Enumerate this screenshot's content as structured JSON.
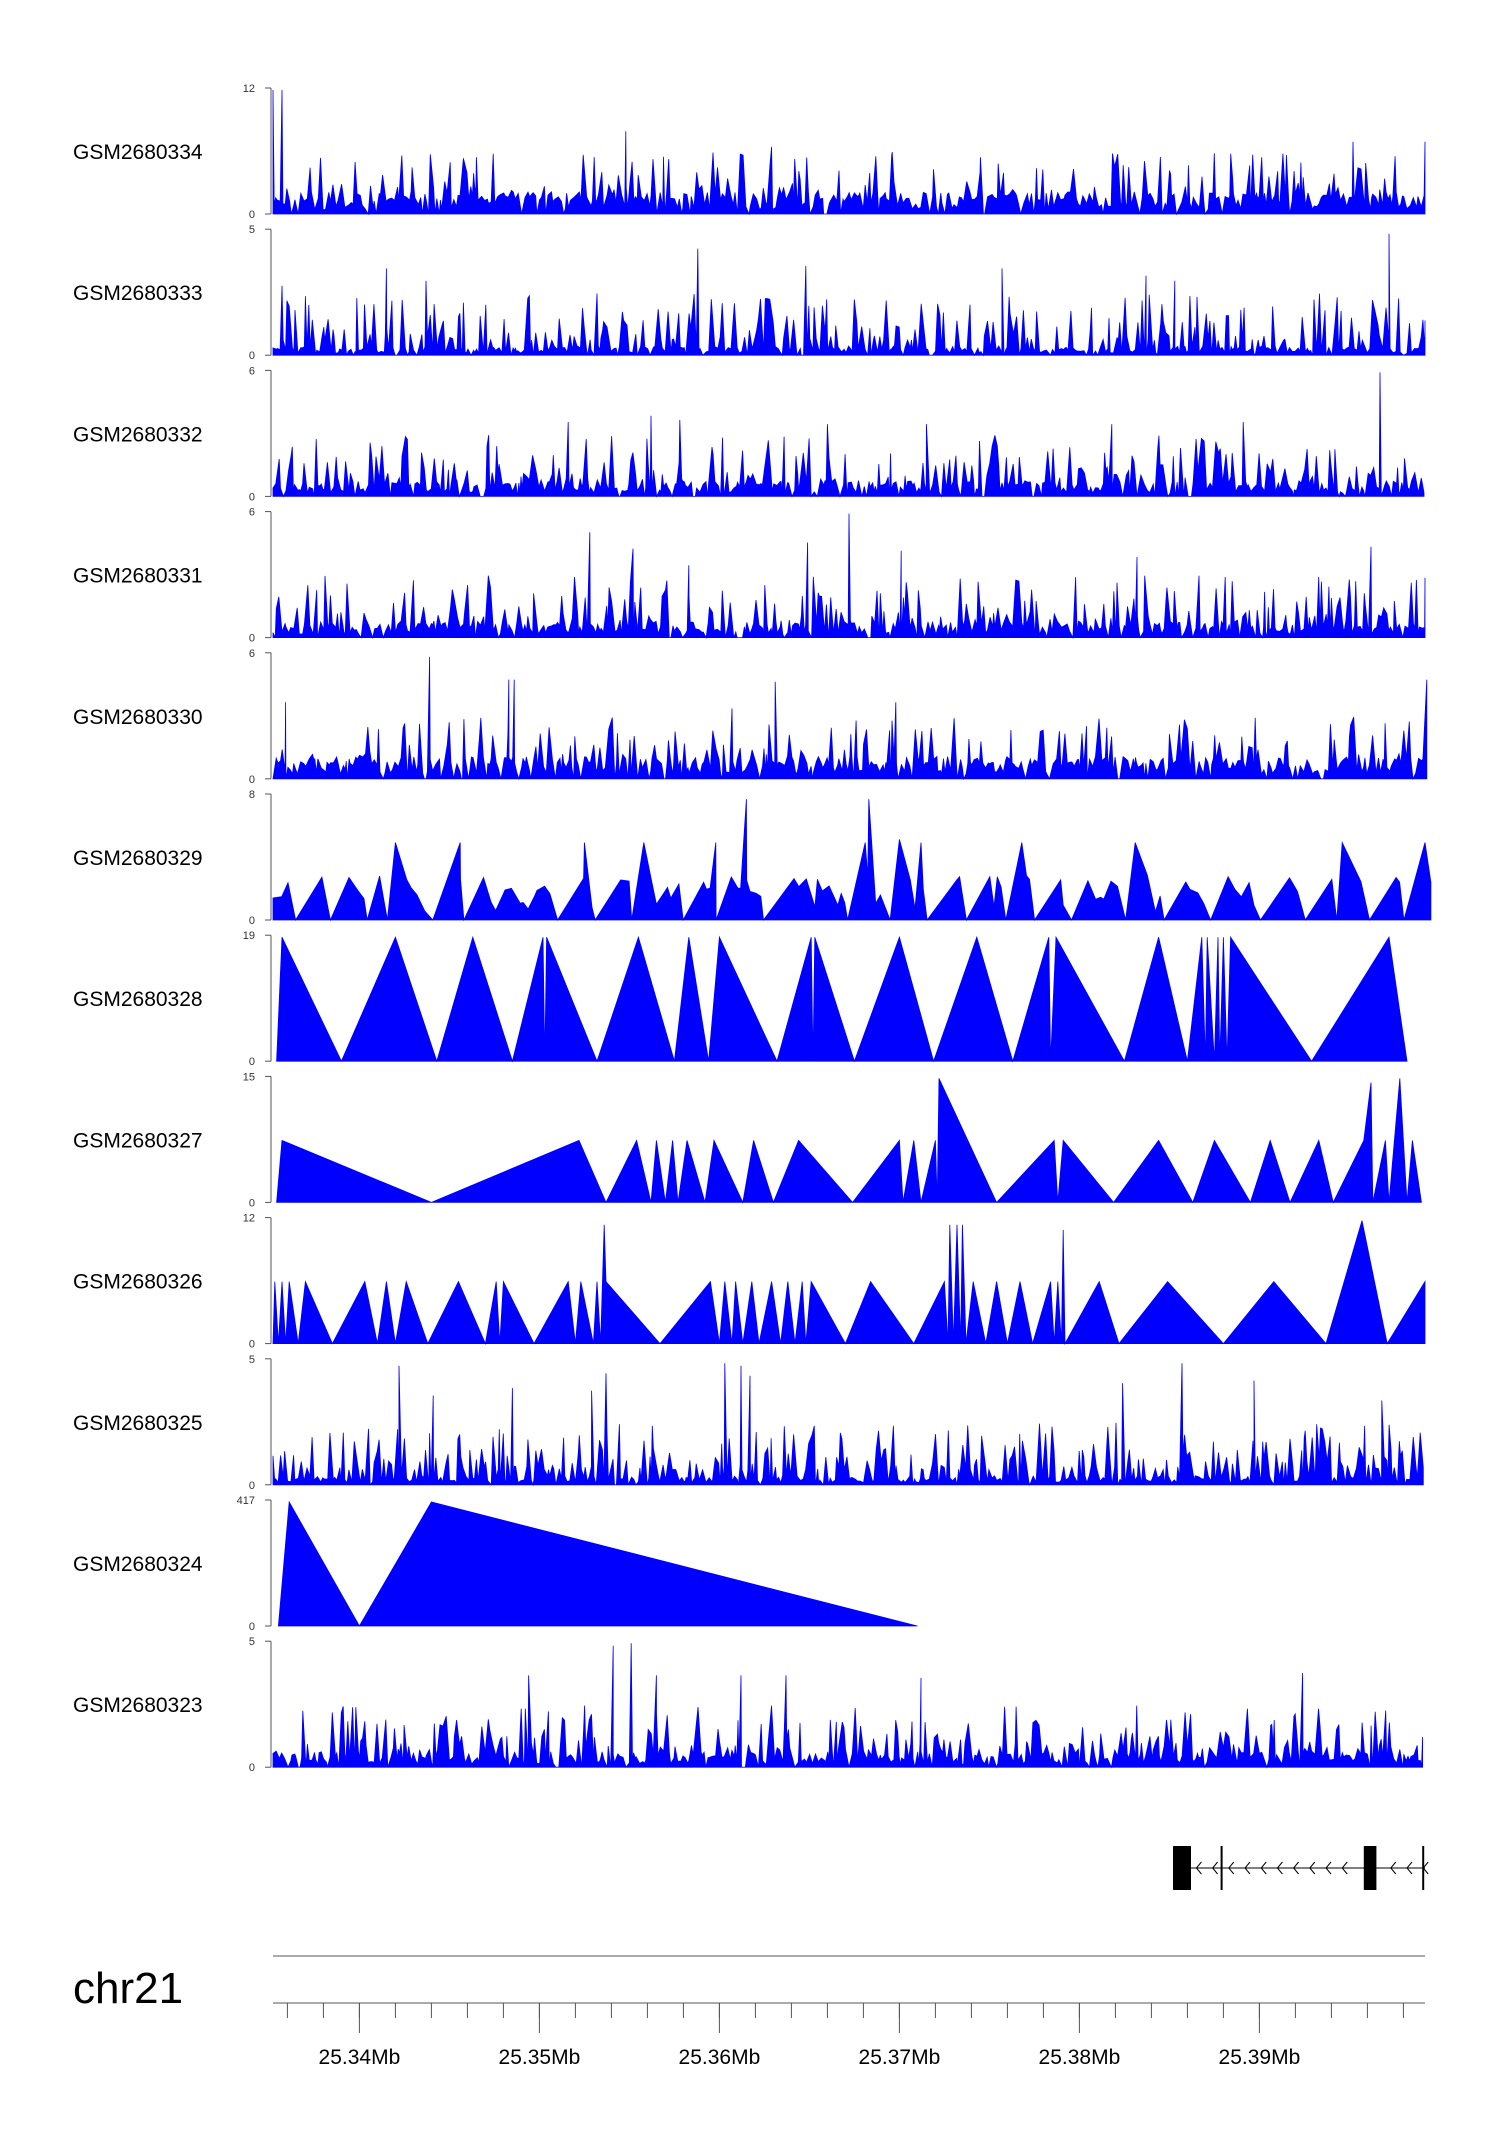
{
  "chart_data": {
    "type": "area",
    "chromosome": "chr21",
    "x_unit": "Mb",
    "xlim": [
      25.3352,
      25.3992
    ],
    "x_ticks": [
      25.34,
      25.35,
      25.36,
      25.37,
      25.38,
      25.39
    ],
    "x_tick_labels": [
      "25.34Mb",
      "25.35Mb",
      "25.36Mb",
      "25.37Mb",
      "25.38Mb",
      "25.39Mb"
    ],
    "minor_tick_step": 0.002,
    "series_color": "#0000ff",
    "tracks": [
      {
        "name": "GSM2680334",
        "ymax": 12,
        "ymax_label": "12",
        "ymin_label": "0",
        "pattern": "dense",
        "baseline": 0.6,
        "peak_rate": 0.32,
        "seed": 334,
        "peaks": [
          [
            25.3352,
            12
          ],
          [
            25.3357,
            12
          ],
          [
            25.3465,
            5.5
          ],
          [
            25.3548,
            8
          ],
          [
            25.3629,
            6.5
          ],
          [
            25.3696,
            6
          ],
          [
            25.3745,
            5.5
          ],
          [
            25.3952,
            7
          ],
          [
            25.3992,
            7
          ]
        ]
      },
      {
        "name": "GSM2680333",
        "ymax": 5,
        "ymax_label": "5",
        "ymin_label": "0",
        "pattern": "dense",
        "baseline": 0.25,
        "peak_rate": 0.38,
        "seed": 333,
        "peaks": [
          [
            25.3357,
            2.8
          ],
          [
            25.3415,
            3.5
          ],
          [
            25.3437,
            3
          ],
          [
            25.3588,
            4.3
          ],
          [
            25.3648,
            3.6
          ],
          [
            25.3757,
            3.5
          ],
          [
            25.3837,
            3.2
          ],
          [
            25.3853,
            3
          ],
          [
            25.3972,
            4.9
          ],
          [
            25.3992,
            1.4
          ]
        ]
      },
      {
        "name": "GSM2680332",
        "ymax": 6,
        "ymax_label": "6",
        "ymin_label": "0",
        "pattern": "dense",
        "baseline": 0.4,
        "peak_rate": 0.35,
        "seed": 332,
        "peaks": [
          [
            25.3516,
            3.6
          ],
          [
            25.3562,
            3.9
          ],
          [
            25.3578,
            3.7
          ],
          [
            25.366,
            3.5
          ],
          [
            25.3715,
            3.5
          ],
          [
            25.3818,
            3.5
          ],
          [
            25.3891,
            3.6
          ],
          [
            25.3967,
            6.0
          ]
        ]
      },
      {
        "name": "GSM2680331",
        "ymax": 6,
        "ymax_label": "6",
        "ymin_label": "0",
        "pattern": "dense",
        "baseline": 0.4,
        "peak_rate": 0.38,
        "seed": 331,
        "peaks": [
          [
            25.3528,
            5.1
          ],
          [
            25.3552,
            4.3
          ],
          [
            25.3583,
            3.5
          ],
          [
            25.3649,
            4.6
          ],
          [
            25.3672,
            6.0
          ],
          [
            25.3701,
            4.2
          ],
          [
            25.3832,
            3.9
          ],
          [
            25.3962,
            4.4
          ],
          [
            25.3992,
            2.9
          ]
        ]
      },
      {
        "name": "GSM2680330",
        "ymax": 6,
        "ymax_label": "6",
        "ymin_label": "0",
        "pattern": "dense",
        "baseline": 0.6,
        "peak_rate": 0.3,
        "seed": 330,
        "peaks": [
          [
            25.3359,
            3.7
          ],
          [
            25.3439,
            5.9
          ],
          [
            25.3483,
            4.8
          ],
          [
            25.3486,
            4.8
          ],
          [
            25.3607,
            3.4
          ],
          [
            25.3631,
            4.7
          ],
          [
            25.3698,
            3.7
          ],
          [
            25.3993,
            4.8
          ]
        ]
      },
      {
        "name": "GSM2680329",
        "ymax": 8,
        "ymax_label": "8",
        "ymin_label": "0",
        "pattern": "sparse",
        "baseline": 0.2,
        "peak_rate": 0.55,
        "seed": 329,
        "peaks": [
          [
            25.342,
            5.0
          ],
          [
            25.3456,
            5.0
          ],
          [
            25.3525,
            5.0
          ],
          [
            25.3558,
            5.0
          ],
          [
            25.3598,
            5.0
          ],
          [
            25.3615,
            7.8
          ],
          [
            25.3681,
            5.0
          ],
          [
            25.3683,
            7.8
          ],
          [
            25.37,
            5.2
          ],
          [
            25.3712,
            5.0
          ],
          [
            25.3768,
            5.0
          ],
          [
            25.3831,
            5.0
          ],
          [
            25.3946,
            5.0
          ],
          [
            25.3992,
            5.0
          ]
        ]
      },
      {
        "name": "GSM2680328",
        "ymax": 19,
        "ymax_label": "19",
        "ymin_label": "0",
        "pattern": "points",
        "points": [
          [
            25.3354,
            0
          ],
          [
            25.3357,
            19
          ],
          [
            25.339,
            0
          ],
          [
            25.342,
            19
          ],
          [
            25.3443,
            0
          ],
          [
            25.3463,
            19
          ],
          [
            25.3485,
            0
          ],
          [
            25.3502,
            19
          ],
          [
            25.3503,
            0
          ],
          [
            25.3504,
            19
          ],
          [
            25.3532,
            0
          ],
          [
            25.3555,
            19
          ],
          [
            25.3575,
            0
          ],
          [
            25.3583,
            19
          ],
          [
            25.3594,
            0
          ],
          [
            25.36,
            19
          ],
          [
            25.3632,
            0
          ],
          [
            25.3651,
            19
          ],
          [
            25.3652,
            0
          ],
          [
            25.3653,
            19
          ],
          [
            25.3675,
            0
          ],
          [
            25.37,
            19
          ],
          [
            25.3719,
            0
          ],
          [
            25.3743,
            19
          ],
          [
            25.3763,
            0
          ],
          [
            25.3783,
            19
          ],
          [
            25.3784,
            0
          ],
          [
            25.3787,
            19
          ],
          [
            25.3825,
            0
          ],
          [
            25.3844,
            19
          ],
          [
            25.386,
            0
          ],
          [
            25.3868,
            19
          ],
          [
            25.387,
            0
          ],
          [
            25.3871,
            19
          ],
          [
            25.3875,
            0
          ],
          [
            25.3877,
            19
          ],
          [
            25.3878,
            0
          ],
          [
            25.388,
            19
          ],
          [
            25.3882,
            0
          ],
          [
            25.3884,
            19
          ],
          [
            25.3929,
            0
          ],
          [
            25.3972,
            19
          ],
          [
            25.3982,
            0
          ]
        ]
      },
      {
        "name": "GSM2680327",
        "ymax": 15,
        "ymax_label": "15",
        "ymin_label": "0",
        "pattern": "points",
        "points": [
          [
            25.3354,
            0
          ],
          [
            25.3357,
            7.5
          ],
          [
            25.344,
            0
          ],
          [
            25.3522,
            7.5
          ],
          [
            25.3537,
            0
          ],
          [
            25.3554,
            7.5
          ],
          [
            25.3562,
            0
          ],
          [
            25.3565,
            7.5
          ],
          [
            25.357,
            0
          ],
          [
            25.3574,
            7.5
          ],
          [
            25.3577,
            0
          ],
          [
            25.3582,
            7.5
          ],
          [
            25.3592,
            0
          ],
          [
            25.3597,
            7.5
          ],
          [
            25.3613,
            0
          ],
          [
            25.3619,
            7.5
          ],
          [
            25.363,
            0
          ],
          [
            25.3644,
            7.5
          ],
          [
            25.3674,
            0
          ],
          [
            25.37,
            7.5
          ],
          [
            25.3702,
            0
          ],
          [
            25.3708,
            7.5
          ],
          [
            25.3712,
            0
          ],
          [
            25.372,
            7.5
          ],
          [
            25.3721,
            0
          ],
          [
            25.3722,
            15
          ],
          [
            25.3754,
            0
          ],
          [
            25.3786,
            7.5
          ],
          [
            25.3788,
            0
          ],
          [
            25.3791,
            7.5
          ],
          [
            25.3819,
            0
          ],
          [
            25.3844,
            7.5
          ],
          [
            25.3863,
            0
          ],
          [
            25.3875,
            7.5
          ],
          [
            25.3895,
            0
          ],
          [
            25.3906,
            7.5
          ],
          [
            25.3917,
            0
          ],
          [
            25.3933,
            7.5
          ],
          [
            25.3941,
            0
          ],
          [
            25.3958,
            7.5
          ],
          [
            25.3962,
            14.5
          ],
          [
            25.3963,
            0
          ],
          [
            25.397,
            7.5
          ],
          [
            25.3972,
            0
          ],
          [
            25.3978,
            15
          ],
          [
            25.3982,
            0
          ],
          [
            25.3985,
            7.5
          ],
          [
            25.399,
            0
          ]
        ]
      },
      {
        "name": "GSM2680326",
        "ymax": 12,
        "ymax_label": "12",
        "ymin_label": "0",
        "pattern": "points",
        "points": [
          [
            25.3352,
            0
          ],
          [
            25.3353,
            6
          ],
          [
            25.3355,
            0
          ],
          [
            25.3357,
            6
          ],
          [
            25.3359,
            0
          ],
          [
            25.3361,
            6
          ],
          [
            25.3366,
            0
          ],
          [
            25.337,
            6
          ],
          [
            25.3385,
            0
          ],
          [
            25.3403,
            6
          ],
          [
            25.341,
            0
          ],
          [
            25.3415,
            6
          ],
          [
            25.342,
            0
          ],
          [
            25.3426,
            6
          ],
          [
            25.3438,
            0
          ],
          [
            25.3455,
            6
          ],
          [
            25.347,
            0
          ],
          [
            25.3476,
            6
          ],
          [
            25.3478,
            0
          ],
          [
            25.348,
            6
          ],
          [
            25.3497,
            0
          ],
          [
            25.3516,
            6
          ],
          [
            25.352,
            0
          ],
          [
            25.3523,
            6
          ],
          [
            25.353,
            0
          ],
          [
            25.3532,
            6
          ],
          [
            25.3534,
            0
          ],
          [
            25.3536,
            11.5
          ],
          [
            25.3537,
            6
          ],
          [
            25.3567,
            0
          ],
          [
            25.3595,
            6
          ],
          [
            25.36,
            0
          ],
          [
            25.3603,
            6
          ],
          [
            25.3607,
            0
          ],
          [
            25.3609,
            6
          ],
          [
            25.3613,
            0
          ],
          [
            25.3618,
            6
          ],
          [
            25.3622,
            0
          ],
          [
            25.3629,
            6
          ],
          [
            25.3634,
            0
          ],
          [
            25.3638,
            6
          ],
          [
            25.3642,
            0
          ],
          [
            25.3646,
            6
          ],
          [
            25.3648,
            0
          ],
          [
            25.3651,
            6
          ],
          [
            25.367,
            0
          ],
          [
            25.3684,
            6
          ],
          [
            25.3708,
            0
          ],
          [
            25.3725,
            6
          ],
          [
            25.3727,
            0
          ],
          [
            25.3728,
            11.5
          ],
          [
            25.373,
            0
          ],
          [
            25.3732,
            11.5
          ],
          [
            25.3734,
            0
          ],
          [
            25.3735,
            11.5
          ],
          [
            25.3737,
            0
          ],
          [
            25.3741,
            6
          ],
          [
            25.3748,
            0
          ],
          [
            25.3754,
            6
          ],
          [
            25.376,
            0
          ],
          [
            25.3767,
            6
          ],
          [
            25.3774,
            0
          ],
          [
            25.3784,
            6
          ],
          [
            25.3786,
            0
          ],
          [
            25.3788,
            6
          ],
          [
            25.379,
            0
          ],
          [
            25.3791,
            11
          ],
          [
            25.3792,
            0
          ],
          [
            25.3811,
            6
          ],
          [
            25.3822,
            0
          ],
          [
            25.3849,
            6
          ],
          [
            25.388,
            0
          ],
          [
            25.3908,
            6
          ],
          [
            25.3937,
            0
          ],
          [
            25.3957,
            11.9
          ],
          [
            25.3971,
            0
          ],
          [
            25.3992,
            6
          ]
        ]
      },
      {
        "name": "GSM2680325",
        "ymax": 5,
        "ymax_label": "5",
        "ymin_label": "0",
        "pattern": "dense",
        "baseline": 0.25,
        "peak_rate": 0.45,
        "seed": 325,
        "peaks": [
          [
            25.3422,
            4.8
          ],
          [
            25.3441,
            3.6
          ],
          [
            25.3485,
            3.9
          ],
          [
            25.3529,
            3.8
          ],
          [
            25.3537,
            4.5
          ],
          [
            25.3603,
            4.9
          ],
          [
            25.3612,
            4.8
          ],
          [
            25.3617,
            4.4
          ],
          [
            25.3824,
            4.1
          ],
          [
            25.3857,
            4.9
          ],
          [
            25.3897,
            4.2
          ],
          [
            25.3968,
            3.4
          ]
        ]
      },
      {
        "name": "GSM2680324",
        "ymax": 417,
        "ymax_label": "417",
        "ymin_label": "0",
        "pattern": "points",
        "points": [
          [
            25.3355,
            0
          ],
          [
            25.3361,
            417
          ],
          [
            25.34,
            0
          ],
          [
            25.344,
            417
          ],
          [
            25.371,
            0
          ]
        ]
      },
      {
        "name": "GSM2680323",
        "ymax": 5,
        "ymax_label": "5",
        "ymin_label": "0",
        "pattern": "dense",
        "baseline": 0.4,
        "peak_rate": 0.4,
        "seed": 323,
        "peaks": [
          [
            25.3494,
            3.7
          ],
          [
            25.3541,
            4.9
          ],
          [
            25.3551,
            5.0
          ],
          [
            25.3565,
            3.7
          ],
          [
            25.3612,
            3.7
          ],
          [
            25.3637,
            3.7
          ],
          [
            25.3712,
            3.6
          ],
          [
            25.3924,
            3.8
          ]
        ]
      }
    ],
    "gene_model": {
      "strand": "-",
      "span": [
        25.3852,
        25.3992
      ],
      "exons": [
        [
          25.3852,
          25.3862
        ],
        [
          25.3958,
          25.3965
        ]
      ],
      "tick_marks": [
        25.3879,
        25.3991
      ]
    }
  }
}
